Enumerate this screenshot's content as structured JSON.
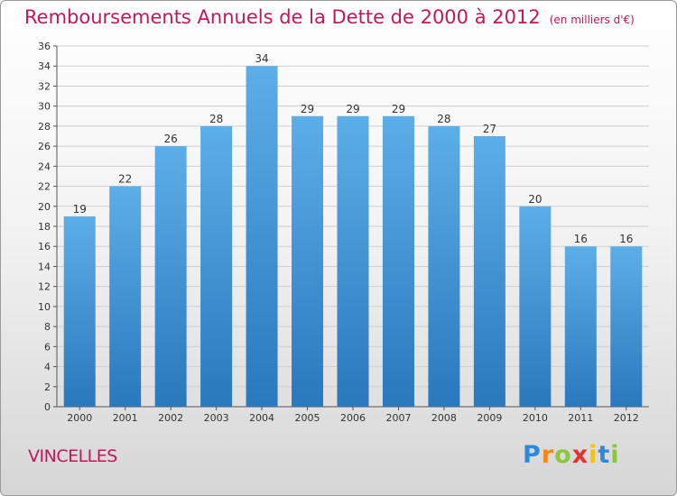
{
  "header": {
    "title": "Remboursements Annuels de la Dette de 2000 à 2012",
    "unit": "(en milliers d'€)"
  },
  "footer": {
    "commune": "VINCELLES",
    "brand_letters": [
      "P",
      "r",
      "o",
      "x",
      "i",
      "t",
      "i"
    ],
    "brand_colors": [
      "#2e8ad8",
      "#f28a1c",
      "#8cc63f",
      "#e5322d",
      "#f2c21c",
      "#2e8ad8",
      "#8cc63f"
    ]
  },
  "colors": {
    "bar_top": "#5caee8",
    "bar_bottom": "#2a78bd",
    "grid": "#cfcfcf",
    "title": "#c2185b",
    "axis_text": "#333333"
  },
  "chart_data": {
    "type": "bar",
    "title": "Remboursements Annuels de la Dette de 2000 à 2012",
    "subtitle": "(en milliers d'€)",
    "xlabel": "",
    "ylabel": "",
    "categories": [
      "2000",
      "2001",
      "2002",
      "2003",
      "2004",
      "2005",
      "2006",
      "2007",
      "2008",
      "2009",
      "2010",
      "2011",
      "2012"
    ],
    "values": [
      19,
      22,
      26,
      28,
      34,
      29,
      29,
      29,
      28,
      27,
      20,
      16,
      16
    ],
    "ylim": [
      0,
      36
    ],
    "yticks": [
      0,
      2,
      4,
      6,
      8,
      10,
      12,
      14,
      16,
      18,
      20,
      22,
      24,
      26,
      28,
      30,
      32,
      34,
      36
    ],
    "grid": true,
    "legend": "none"
  }
}
